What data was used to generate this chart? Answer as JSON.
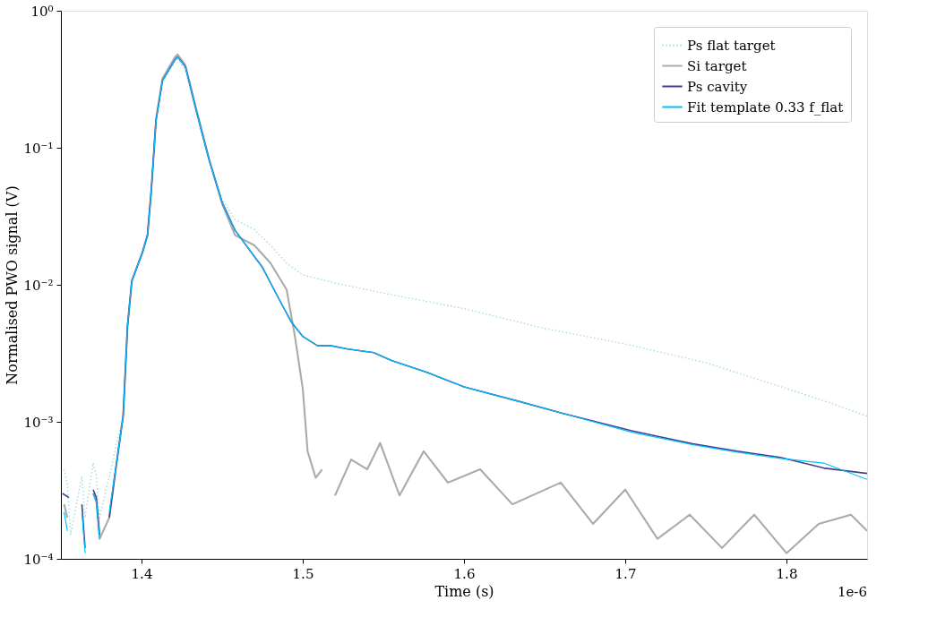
{
  "chart_data": {
    "type": "line",
    "xlabel": "Time (s)",
    "ylabel": "Normalised PWO signal (V)",
    "log": "y",
    "xlim": [
      1.35,
      1.85
    ],
    "xticks": [
      1.4,
      1.5,
      1.6,
      1.7,
      1.8
    ],
    "ylim": [
      0.0001,
      1
    ],
    "yticks": [
      {
        "value": 0.0001,
        "label": "10⁻⁴"
      },
      {
        "value": 0.001,
        "label": "10⁻³"
      },
      {
        "value": 0.01,
        "label": "10⁻²"
      },
      {
        "value": 0.1,
        "label": "10⁻¹"
      },
      {
        "value": 1,
        "label": "10⁰"
      }
    ],
    "grid": false,
    "legend": "top right",
    "annotations": [
      "1e-6"
    ],
    "series": [
      {
        "name": "Ps flat target",
        "color": "#a3dadd",
        "line_style": "dotted",
        "x": [
          1.352,
          1.354,
          1.356,
          1.363,
          1.365,
          1.37,
          1.372,
          1.374,
          1.38,
          1.382,
          1.3845,
          1.3886,
          1.3913,
          1.394,
          1.4004,
          1.4037,
          1.406,
          1.409,
          1.413,
          1.4208,
          1.4224,
          1.4272,
          1.434,
          1.442,
          1.45,
          1.458,
          1.47,
          1.48,
          1.49,
          1.5,
          1.52,
          1.55,
          1.6,
          1.65,
          1.7,
          1.75,
          1.8,
          1.825,
          1.85
        ],
        "values": [
          0.00045,
          0.00035,
          0.00015,
          0.0004,
          0.0002,
          0.0005,
          0.0004,
          0.0002,
          0.0004,
          0.0005,
          0.0007,
          0.0011,
          0.005,
          0.0107,
          0.017,
          0.023,
          0.048,
          0.16,
          0.3,
          0.43,
          0.44,
          0.37,
          0.18,
          0.08,
          0.042,
          0.03,
          0.0253,
          0.0194,
          0.0144,
          0.0118,
          0.0103,
          0.0087,
          0.0067,
          0.0048,
          0.0037,
          0.0027,
          0.00175,
          0.0014,
          0.0011
        ]
      },
      {
        "name": "Si target",
        "color": "#aaaaaa",
        "line_style": "solid",
        "x": [
          1.352,
          1.354,
          1.356,
          1.37,
          1.372,
          1.374,
          1.38,
          1.382,
          1.3845,
          1.3886,
          1.3913,
          1.394,
          1.4004,
          1.4037,
          1.406,
          1.409,
          1.413,
          1.4208,
          1.4224,
          1.4272,
          1.434,
          1.442,
          1.45,
          1.458,
          1.47,
          1.48,
          1.49,
          1.495,
          1.5,
          1.503,
          1.508,
          1.512,
          1.516,
          1.52,
          1.53,
          1.54,
          1.548,
          1.56,
          1.575,
          1.59,
          1.61,
          1.63,
          1.66,
          1.68,
          1.7,
          1.72,
          1.74,
          1.76,
          1.78,
          1.8,
          1.82,
          1.84,
          1.85
        ],
        "values": [
          0.00025,
          0.0002,
          null,
          0.0003,
          0.00026,
          0.00014,
          0.0002,
          0.0003,
          0.0005,
          0.0011,
          0.005,
          0.0107,
          0.017,
          0.023,
          0.048,
          0.16,
          0.32,
          0.46,
          0.48,
          0.4,
          0.19,
          0.082,
          0.039,
          0.023,
          0.0194,
          0.0144,
          0.0092,
          0.0043,
          0.00175,
          0.00061,
          0.00039,
          0.00045,
          null,
          0.00029,
          0.00053,
          0.00045,
          0.0007,
          0.00029,
          0.00061,
          0.00036,
          0.00045,
          0.00025,
          0.00036,
          0.00018,
          0.00032,
          0.00014,
          0.00021,
          0.00012,
          0.00021,
          0.00011,
          0.00018,
          0.00021,
          0.00016
        ]
      },
      {
        "name": "Ps cavity",
        "color": "#483d8b",
        "line_style": "solid",
        "x": [
          1.351,
          1.355,
          1.356,
          1.362,
          1.363,
          1.365,
          1.367,
          1.37,
          1.372,
          1.374,
          1.376,
          1.379,
          1.38,
          1.382,
          1.3845,
          1.3886,
          1.3913,
          1.394,
          1.4004,
          1.4037,
          1.406,
          1.409,
          1.413,
          1.4208,
          1.4224,
          1.4272,
          1.434,
          1.442,
          1.45,
          1.458,
          1.469,
          1.475,
          1.4847,
          1.4927,
          1.5,
          1.509,
          1.517,
          1.528,
          1.544,
          1.555,
          1.577,
          1.6,
          1.635,
          1.6616,
          1.704,
          1.742,
          1.7695,
          1.7963,
          1.823,
          1.85
        ],
        "values": [
          0.0003,
          0.00028,
          null,
          null,
          0.00025,
          0.00012,
          null,
          0.00032,
          0.00028,
          0.00015,
          null,
          null,
          0.0002,
          0.0003,
          0.0005,
          0.0011,
          0.005,
          0.0107,
          0.017,
          0.023,
          0.048,
          0.16,
          0.31,
          0.44,
          0.46,
          0.39,
          0.186,
          0.081,
          0.04,
          0.025,
          0.0167,
          0.0134,
          0.0081,
          0.0054,
          0.0042,
          0.0036,
          0.0036,
          0.0034,
          0.0032,
          0.0028,
          0.0023,
          0.0018,
          0.0014,
          0.00115,
          0.00086,
          0.00069,
          0.00061,
          0.00055,
          0.00046,
          0.00042
        ]
      },
      {
        "name": "Fit template 0.33 f_flat",
        "color": "#00bfff",
        "line_style": "solid",
        "x": [
          1.352,
          1.354,
          1.356,
          1.362,
          1.363,
          1.365,
          1.367,
          1.37,
          1.372,
          1.374,
          1.376,
          1.379,
          1.38,
          1.382,
          1.3845,
          1.3886,
          1.3913,
          1.394,
          1.4004,
          1.4037,
          1.406,
          1.409,
          1.413,
          1.4208,
          1.4224,
          1.4272,
          1.434,
          1.442,
          1.45,
          1.458,
          1.469,
          1.475,
          1.4847,
          1.4927,
          1.5,
          1.509,
          1.517,
          1.528,
          1.544,
          1.555,
          1.577,
          1.6,
          1.635,
          1.6616,
          1.704,
          1.742,
          1.7695,
          1.7963,
          1.823,
          1.85
        ],
        "values": [
          0.00022,
          0.00016,
          null,
          null,
          0.00022,
          0.00011,
          null,
          0.0003,
          0.00026,
          0.00014,
          null,
          null,
          0.00022,
          0.00032,
          0.0005,
          0.0011,
          0.005,
          0.0107,
          0.017,
          0.023,
          0.048,
          0.16,
          0.31,
          0.44,
          0.46,
          0.39,
          0.186,
          0.081,
          0.04,
          0.025,
          0.0167,
          0.0134,
          0.0081,
          0.0054,
          0.0042,
          0.0036,
          0.0036,
          0.0034,
          0.0032,
          0.0028,
          0.0023,
          0.0018,
          0.0014,
          0.00115,
          0.00084,
          0.00068,
          0.0006,
          0.00054,
          0.0005,
          0.00038
        ]
      }
    ]
  }
}
